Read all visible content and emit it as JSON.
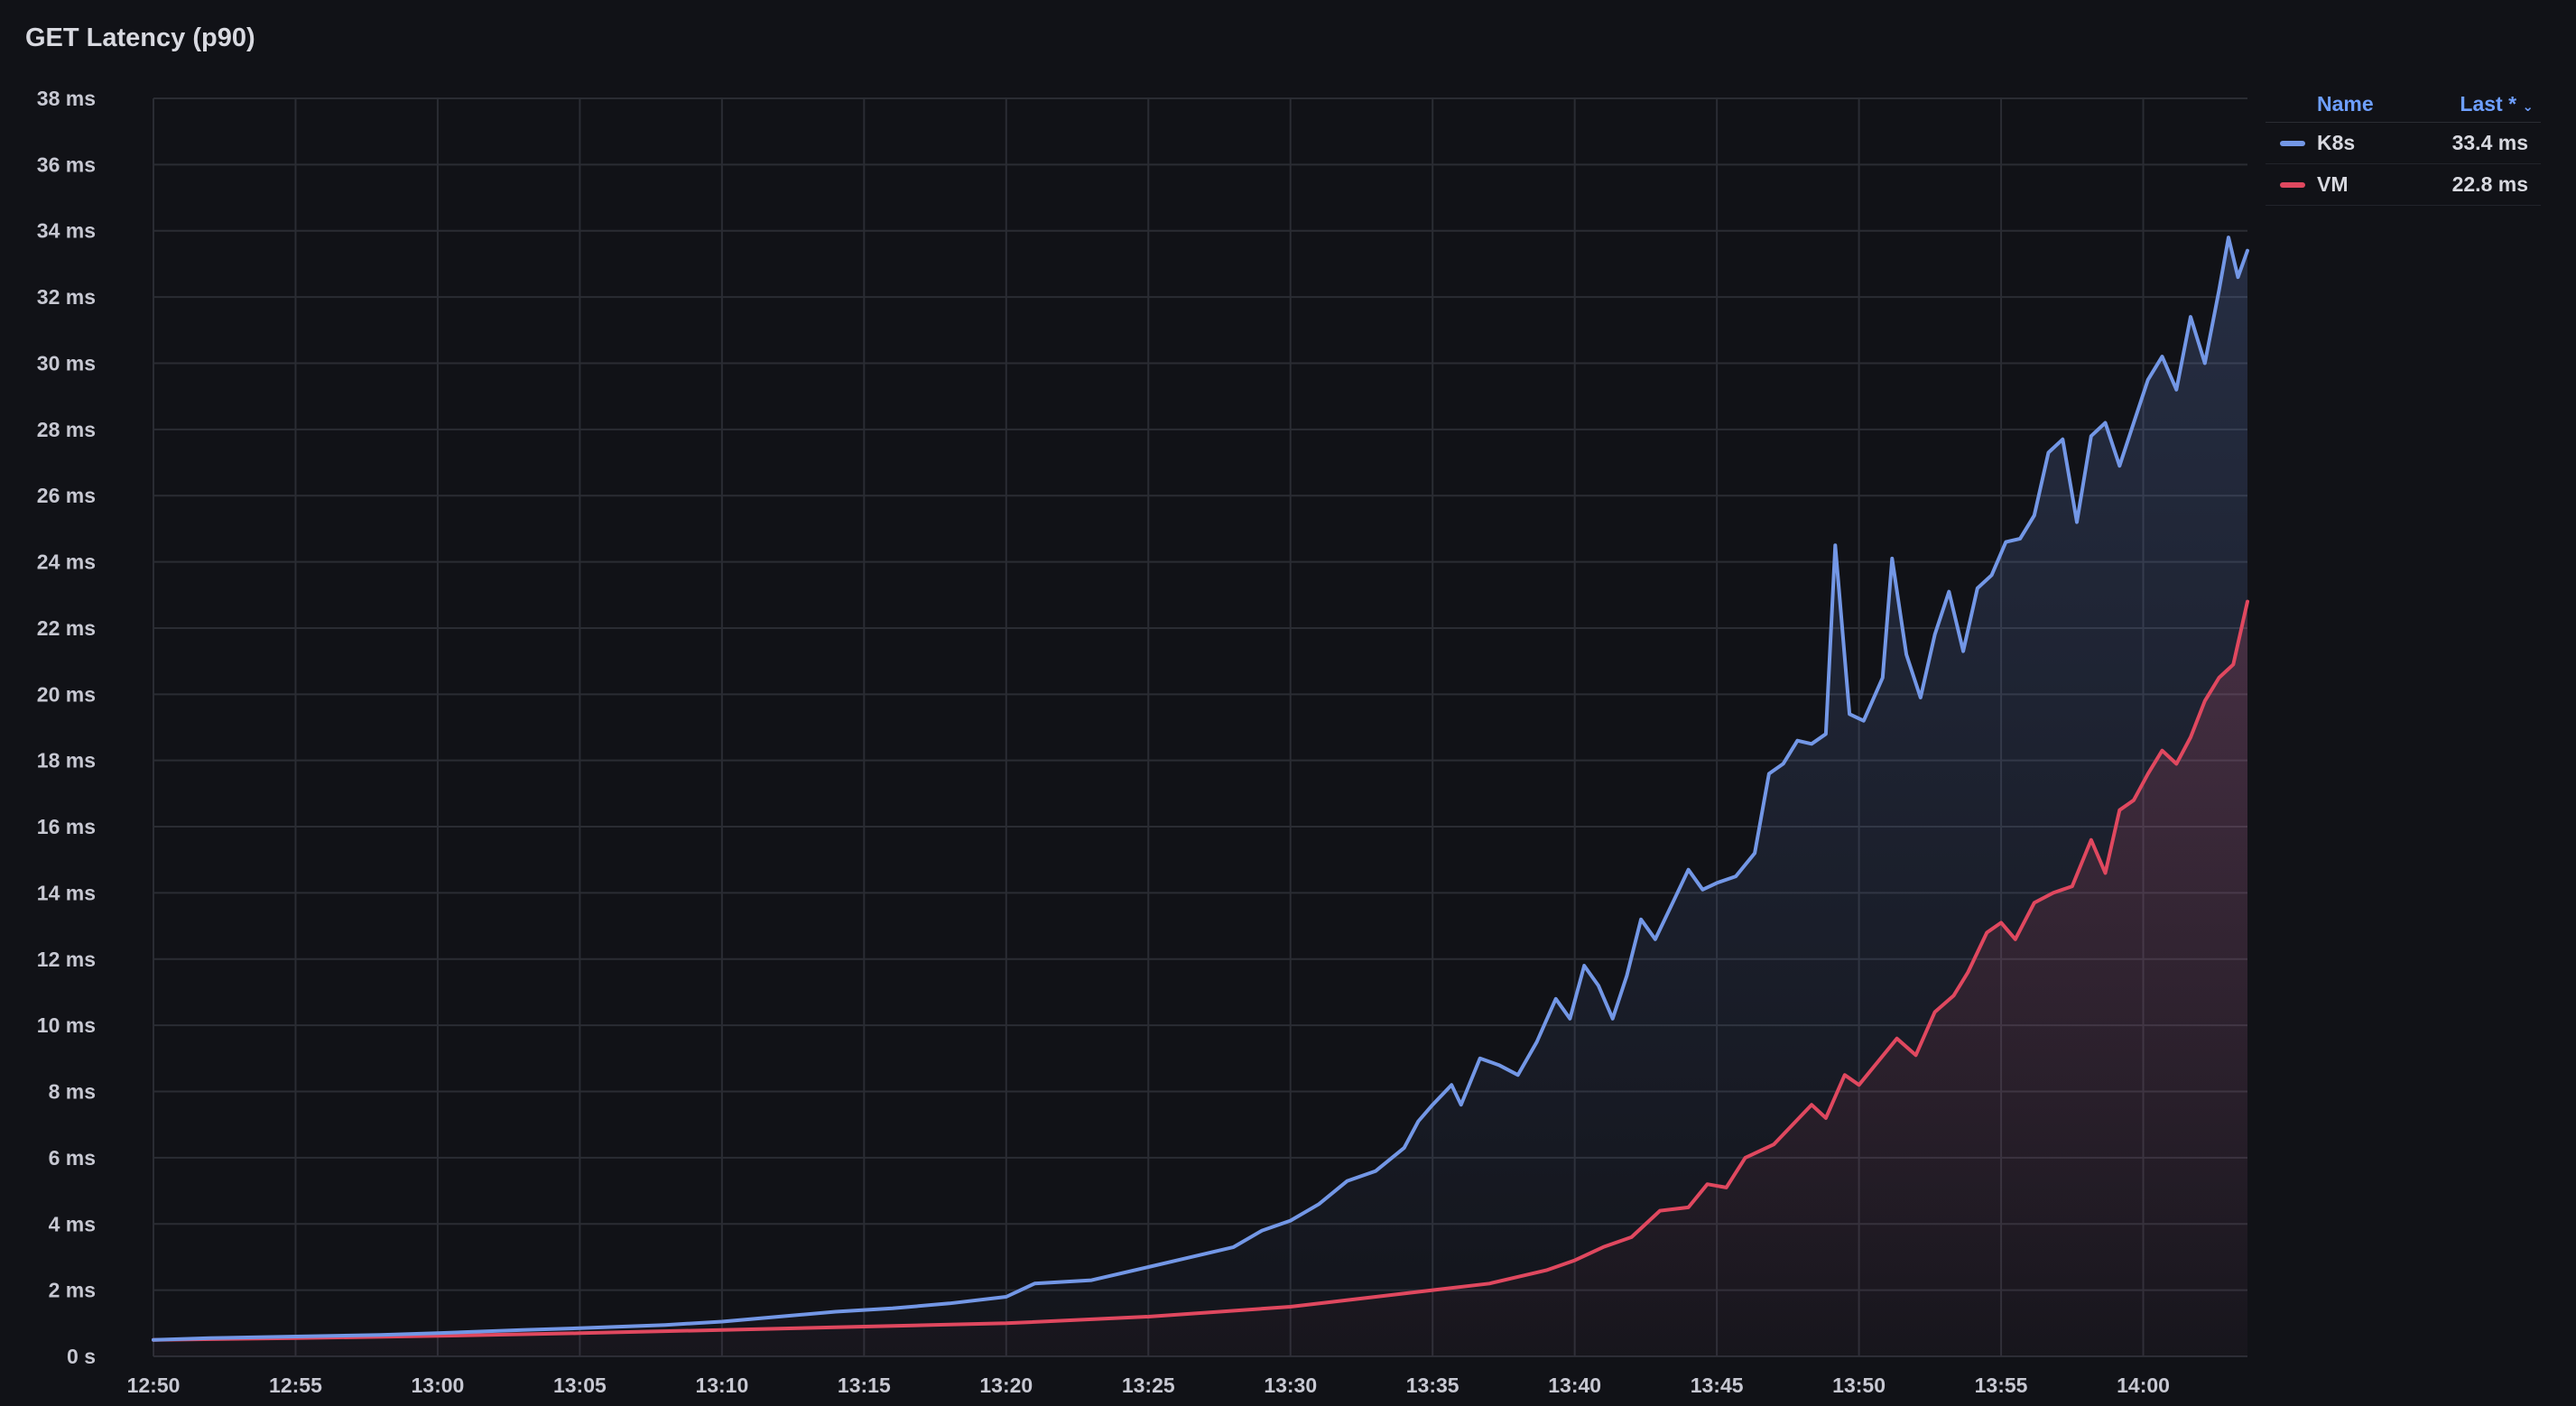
{
  "panel": {
    "title": "GET Latency (p90)"
  },
  "legend": {
    "name_header": "Name",
    "last_header": "Last *",
    "sort_icon": "chevron-down-icon",
    "items": [
      {
        "name": "K8s",
        "last": "33.4 ms",
        "color": "#7397e6"
      },
      {
        "name": "VM",
        "last": "22.8 ms",
        "color": "#e0485f"
      }
    ]
  },
  "chart_data": {
    "type": "line",
    "title": "GET Latency (p90)",
    "xlabel": "",
    "ylabel": "",
    "y_unit": "ms",
    "ylim": [
      0,
      38
    ],
    "yticks": [
      "0 s",
      "2 ms",
      "4 ms",
      "6 ms",
      "8 ms",
      "10 ms",
      "12 ms",
      "14 ms",
      "16 ms",
      "18 ms",
      "20 ms",
      "22 ms",
      "24 ms",
      "26 ms",
      "28 ms",
      "30 ms",
      "32 ms",
      "34 ms",
      "36 ms",
      "38 ms"
    ],
    "xticks": [
      "12:50",
      "12:55",
      "13:00",
      "13:05",
      "13:10",
      "13:15",
      "13:20",
      "13:25",
      "13:30",
      "13:35",
      "13:40",
      "13:45",
      "13:50",
      "13:55",
      "14:00"
    ],
    "x_range": [
      "12:50",
      "14:03:40"
    ],
    "grid": true,
    "legend_position": "top-right",
    "series": [
      {
        "name": "K8s",
        "color": "#7397e6",
        "points": [
          [
            "12:50",
            0.5
          ],
          [
            "12:52",
            0.55
          ],
          [
            "12:55",
            0.6
          ],
          [
            "12:58",
            0.65
          ],
          [
            "13:00",
            0.7
          ],
          [
            "13:03",
            0.8
          ],
          [
            "13:05",
            0.85
          ],
          [
            "13:08",
            0.95
          ],
          [
            "13:10",
            1.05
          ],
          [
            "13:12",
            1.2
          ],
          [
            "13:14",
            1.35
          ],
          [
            "13:16",
            1.45
          ],
          [
            "13:18",
            1.6
          ],
          [
            "13:20",
            1.8
          ],
          [
            "13:21",
            2.2
          ],
          [
            "13:23",
            2.3
          ],
          [
            "13:25",
            2.7
          ],
          [
            "13:27",
            3.1
          ],
          [
            "13:28",
            3.3
          ],
          [
            "13:29",
            3.8
          ],
          [
            "13:30",
            4.1
          ],
          [
            "13:31",
            4.6
          ],
          [
            "13:32",
            5.3
          ],
          [
            "13:33",
            5.6
          ],
          [
            "13:34",
            6.3
          ],
          [
            "13:34:30",
            7.1
          ],
          [
            "13:35",
            7.6
          ],
          [
            "13:35:40",
            8.2
          ],
          [
            "13:36",
            7.6
          ],
          [
            "13:36:40",
            9.0
          ],
          [
            "13:37:20",
            8.8
          ],
          [
            "13:38",
            8.5
          ],
          [
            "13:38:40",
            9.5
          ],
          [
            "13:39:20",
            10.8
          ],
          [
            "13:39:50",
            10.2
          ],
          [
            "13:40:20",
            11.8
          ],
          [
            "13:40:50",
            11.2
          ],
          [
            "13:41:20",
            10.2
          ],
          [
            "13:41:50",
            11.5
          ],
          [
            "13:42:20",
            13.2
          ],
          [
            "13:42:50",
            12.6
          ],
          [
            "13:43:30",
            13.8
          ],
          [
            "13:44",
            14.7
          ],
          [
            "13:44:30",
            14.1
          ],
          [
            "13:45",
            14.3
          ],
          [
            "13:45:40",
            14.5
          ],
          [
            "13:46:20",
            15.2
          ],
          [
            "13:46:50",
            17.6
          ],
          [
            "13:47:20",
            17.9
          ],
          [
            "13:47:50",
            18.6
          ],
          [
            "13:48:20",
            18.5
          ],
          [
            "13:48:50",
            18.8
          ],
          [
            "13:49:10",
            24.5
          ],
          [
            "13:49:40",
            19.4
          ],
          [
            "13:50:10",
            19.2
          ],
          [
            "13:50:50",
            20.5
          ],
          [
            "13:51:10",
            24.1
          ],
          [
            "13:51:40",
            21.2
          ],
          [
            "13:52:10",
            19.9
          ],
          [
            "13:52:40",
            21.8
          ],
          [
            "13:53:10",
            23.1
          ],
          [
            "13:53:40",
            21.3
          ],
          [
            "13:54:10",
            23.2
          ],
          [
            "13:54:40",
            23.6
          ],
          [
            "13:55:10",
            24.6
          ],
          [
            "13:55:40",
            24.7
          ],
          [
            "13:56:10",
            25.4
          ],
          [
            "13:56:40",
            27.3
          ],
          [
            "13:57:10",
            27.7
          ],
          [
            "13:57:40",
            25.2
          ],
          [
            "13:58:10",
            27.8
          ],
          [
            "13:58:40",
            28.2
          ],
          [
            "13:59:10",
            26.9
          ],
          [
            "13:59:40",
            28.2
          ],
          [
            "14:00:10",
            29.5
          ],
          [
            "14:00:40",
            30.2
          ],
          [
            "14:01:10",
            29.2
          ],
          [
            "14:01:40",
            31.4
          ],
          [
            "14:02:10",
            30.0
          ],
          [
            "14:02:40",
            32.2
          ],
          [
            "14:03",
            33.8
          ],
          [
            "14:03:20",
            32.6
          ],
          [
            "14:03:40",
            33.4
          ]
        ]
      },
      {
        "name": "VM",
        "color": "#e0485f",
        "points": [
          [
            "12:50",
            0.5
          ],
          [
            "12:55",
            0.55
          ],
          [
            "13:00",
            0.62
          ],
          [
            "13:05",
            0.7
          ],
          [
            "13:10",
            0.8
          ],
          [
            "13:15",
            0.9
          ],
          [
            "13:20",
            1.0
          ],
          [
            "13:25",
            1.2
          ],
          [
            "13:30",
            1.5
          ],
          [
            "13:33",
            1.8
          ],
          [
            "13:35",
            2.0
          ],
          [
            "13:37",
            2.2
          ],
          [
            "13:39",
            2.6
          ],
          [
            "13:40",
            2.9
          ],
          [
            "13:41",
            3.3
          ],
          [
            "13:42",
            3.6
          ],
          [
            "13:43",
            4.4
          ],
          [
            "13:44",
            4.5
          ],
          [
            "13:44:40",
            5.2
          ],
          [
            "13:45:20",
            5.1
          ],
          [
            "13:46",
            6.0
          ],
          [
            "13:47",
            6.4
          ],
          [
            "13:47:40",
            7.0
          ],
          [
            "13:48:20",
            7.6
          ],
          [
            "13:48:50",
            7.2
          ],
          [
            "13:49:30",
            8.5
          ],
          [
            "13:50",
            8.2
          ],
          [
            "13:50:40",
            8.9
          ],
          [
            "13:51:20",
            9.6
          ],
          [
            "13:52",
            9.1
          ],
          [
            "13:52:40",
            10.4
          ],
          [
            "13:53:20",
            10.9
          ],
          [
            "13:53:50",
            11.6
          ],
          [
            "13:54:30",
            12.8
          ],
          [
            "13:55",
            13.1
          ],
          [
            "13:55:30",
            12.6
          ],
          [
            "13:56:10",
            13.7
          ],
          [
            "13:56:50",
            14.0
          ],
          [
            "13:57:30",
            14.2
          ],
          [
            "13:58:10",
            15.6
          ],
          [
            "13:58:40",
            14.6
          ],
          [
            "13:59:10",
            16.5
          ],
          [
            "13:59:40",
            16.8
          ],
          [
            "14:00:10",
            17.6
          ],
          [
            "14:00:40",
            18.3
          ],
          [
            "14:01:10",
            17.9
          ],
          [
            "14:01:40",
            18.7
          ],
          [
            "14:02:10",
            19.8
          ],
          [
            "14:02:40",
            20.5
          ],
          [
            "14:03:10",
            20.9
          ],
          [
            "14:03:40",
            22.8
          ]
        ]
      }
    ]
  }
}
